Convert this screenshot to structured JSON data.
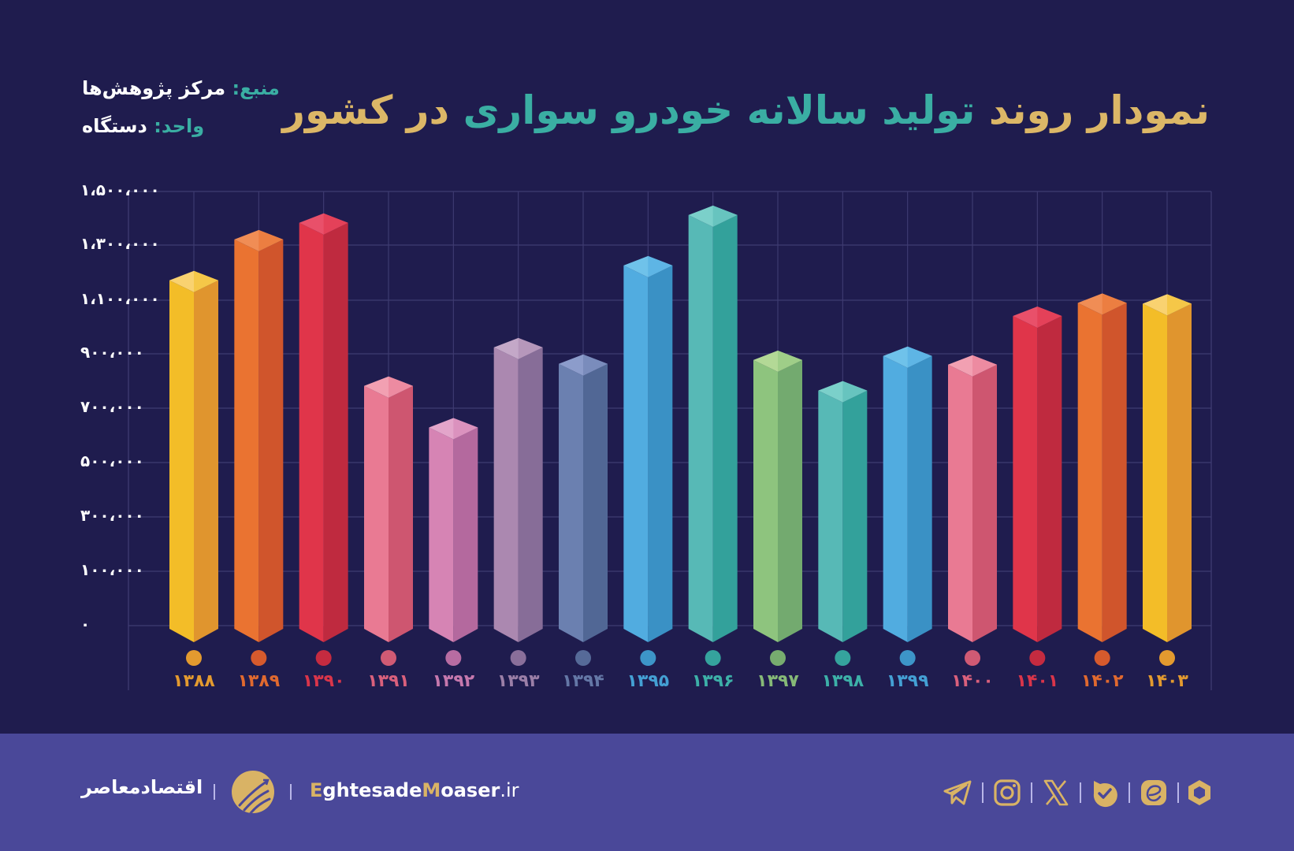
{
  "header": {
    "title_parts": [
      {
        "text": "نمودار روند",
        "color": "gold"
      },
      {
        "text": " تولید سالانه خودرو سواری ",
        "color": "teal"
      },
      {
        "text": "در کشور",
        "color": "gold"
      }
    ],
    "source_label": "منبع:",
    "source_value": " مرکز پژوهش‌ها",
    "unit_label": "واحد:",
    "unit_value": " دستگاه"
  },
  "colors": {
    "background": "#1f1c4e",
    "footer": "#4a4899",
    "gold": "#dcb767",
    "teal": "#3aaea3",
    "grid": "#3f3c72"
  },
  "chart_data": {
    "type": "bar",
    "title": "نمودار روند تولید سالانه خودرو سواری در کشور",
    "source": "مرکز پژوهش‌ها",
    "unit": "دستگاه",
    "xlabel": "",
    "ylabel": "",
    "ylim": [
      0,
      1500000
    ],
    "grid": true,
    "legend": "none",
    "y_ticks": [
      "۰",
      "۱۰۰،۰۰۰",
      "۳۰۰،۰۰۰",
      "۵۰۰،۰۰۰",
      "۷۰۰،۰۰۰",
      "۹۰۰،۰۰۰",
      "۱،۱۰۰،۰۰۰",
      "۱،۳۰۰،۰۰۰",
      "۱،۵۰۰،۰۰۰"
    ],
    "y_tick_values": [
      0,
      100000,
      300000,
      500000,
      700000,
      900000,
      1100000,
      1300000,
      1500000
    ],
    "categories": [
      "۱۳۸۸",
      "۱۳۸۹",
      "۱۳۹۰",
      "۱۳۹۱",
      "۱۳۹۲",
      "۱۳۹۳",
      "۱۳۹۴",
      "۱۳۹۵",
      "۱۳۹۶",
      "۱۳۹۷",
      "۱۳۹۸",
      "۱۳۹۹",
      "۱۴۰۰",
      "۱۴۰۱",
      "۱۴۰۲",
      "۱۴۰۳"
    ],
    "categories_latin": [
      "1388",
      "1389",
      "1390",
      "1391",
      "1392",
      "1393",
      "1394",
      "1395",
      "1396",
      "1397",
      "1398",
      "1399",
      "1400",
      "1401",
      "1402",
      "1403"
    ],
    "values": [
      1172000,
      1321000,
      1383000,
      782000,
      629000,
      924000,
      863000,
      1226000,
      1412000,
      877000,
      765000,
      892000,
      860000,
      1041000,
      1090000,
      1087000
    ],
    "bar_colors": [
      {
        "front": "#f3bd28",
        "side": "#e0952e",
        "top": "#f9d270",
        "dot": "#e39a2f",
        "label": "#e39a2f"
      },
      {
        "front": "#ea7331",
        "side": "#d0552c",
        "top": "#f08d55",
        "dot": "#d65a2d",
        "label": "#e0692f"
      },
      {
        "front": "#e0354a",
        "side": "#bf2a3f",
        "top": "#e9506a",
        "dot": "#c52b40",
        "label": "#d9354a"
      },
      {
        "front": "#e97a93",
        "side": "#ce5670",
        "top": "#f2a0b2",
        "dot": "#d05a74",
        "label": "#d9607c"
      },
      {
        "front": "#d684b4",
        "side": "#b4699e",
        "top": "#e3a5ca",
        "dot": "#b86ca2",
        "label": "#c578ad"
      },
      {
        "front": "#ab88b0",
        "side": "#876d98",
        "top": "#c4a8c8",
        "dot": "#8a6f9a",
        "label": "#9b7fa7"
      },
      {
        "front": "#6b80b0",
        "side": "#516795",
        "top": "#8c9ccb",
        "dot": "#566a98",
        "label": "#6477a6"
      },
      {
        "front": "#51ace0",
        "side": "#3a91c5",
        "top": "#6fc2ea",
        "dot": "#3d95c8",
        "label": "#44a0d4"
      },
      {
        "front": "#57b9b6",
        "side": "#33a19b",
        "top": "#7bd0ca",
        "dot": "#35a39d",
        "label": "#3db0a8"
      },
      {
        "front": "#8ec47e",
        "side": "#73aa6f",
        "top": "#b3d996",
        "dot": "#77ac6f",
        "label": "#86b977"
      },
      {
        "front": "#57b9b6",
        "side": "#33a19b",
        "top": "#7bd0ca",
        "dot": "#35a39d",
        "label": "#3db0a8"
      },
      {
        "front": "#51ace0",
        "side": "#3a91c5",
        "top": "#6fc2ea",
        "dot": "#3d95c8",
        "label": "#44a0d4"
      },
      {
        "front": "#e97a93",
        "side": "#ce5670",
        "top": "#f2a0b2",
        "dot": "#d05a74",
        "label": "#d9607c"
      },
      {
        "front": "#e0354a",
        "side": "#bf2a3f",
        "top": "#e9506a",
        "dot": "#c52b40",
        "label": "#d9354a"
      },
      {
        "front": "#ea7331",
        "side": "#d0552c",
        "top": "#f08d55",
        "dot": "#d65a2d",
        "label": "#e0692f"
      },
      {
        "front": "#f3bd28",
        "side": "#e0952e",
        "top": "#f9d270",
        "dot": "#e39a2f",
        "label": "#e39a2f"
      }
    ]
  },
  "footer": {
    "brand_fa": "اقتصادمعاصر",
    "site_parts": [
      {
        "text": "E",
        "accent": true
      },
      {
        "text": "ghtesade",
        "accent": false
      },
      {
        "text": "M",
        "accent": true
      },
      {
        "text": "oaser",
        "accent": false
      },
      {
        "text": ".ir",
        "accent": false,
        "light": true
      }
    ],
    "social_icons": [
      "telegram-icon",
      "instagram-icon",
      "x-icon",
      "bale-icon",
      "eitaa-icon",
      "rubika-icon"
    ]
  }
}
